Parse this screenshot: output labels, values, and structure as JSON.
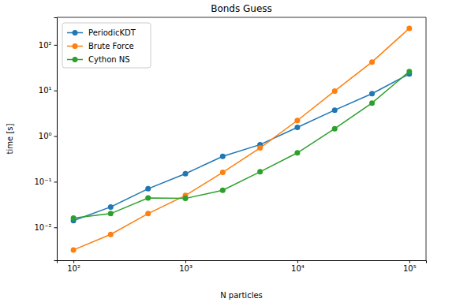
{
  "chart_data": {
    "type": "line",
    "title": "Bonds Guess",
    "x_label": "N particles",
    "y_label": "time [s]",
    "log": true,
    "grid": false,
    "legend": "upper-left",
    "x": [
      100,
      215,
      464,
      1000,
      2154,
      4642,
      10000,
      21544,
      46416,
      100000
    ],
    "series": [
      {
        "name": "PeriodicKDT",
        "color": "#1f77b4",
        "marker": "circle",
        "line_style": "solid",
        "values": [
          0.014,
          0.028,
          0.07,
          0.15,
          0.36,
          0.65,
          1.55,
          3.7,
          8.5,
          23
        ]
      },
      {
        "name": "Brute Force",
        "color": "#ff7f0e",
        "marker": "circle",
        "line_style": "solid",
        "values": [
          0.0032,
          0.007,
          0.02,
          0.05,
          0.16,
          0.55,
          2.2,
          9.7,
          42,
          230
        ]
      },
      {
        "name": "Cython NS",
        "color": "#2ca02c",
        "marker": "circle",
        "line_style": "solid",
        "values": [
          0.016,
          0.02,
          0.044,
          0.043,
          0.065,
          0.165,
          0.43,
          1.45,
          5.3,
          26
        ]
      }
    ],
    "xlim": [
      71,
      141000
    ],
    "ylim": [
      0.0019,
      400
    ],
    "xticks": [
      {
        "value": 100,
        "label": "10²"
      },
      {
        "value": 1000,
        "label": "10³"
      },
      {
        "value": 10000,
        "label": "10⁴"
      },
      {
        "value": 100000,
        "label": "10⁵"
      }
    ],
    "yticks": [
      {
        "value": 0.01,
        "label": "10⁻²"
      },
      {
        "value": 0.1,
        "label": "10⁻¹"
      },
      {
        "value": 1,
        "label": "10⁰"
      },
      {
        "value": 10,
        "label": "10¹"
      },
      {
        "value": 100,
        "label": "10²"
      }
    ]
  }
}
